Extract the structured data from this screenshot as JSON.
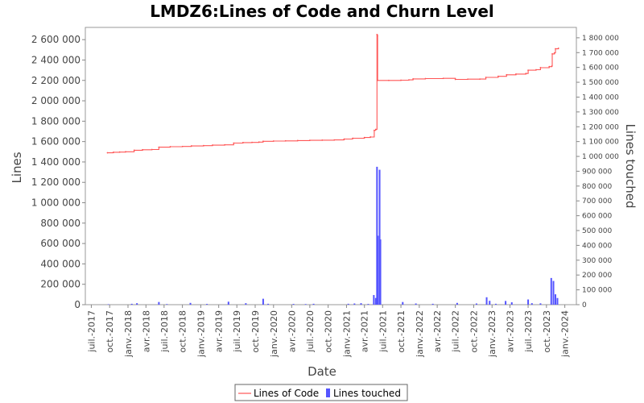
{
  "chart_data": {
    "type": "line",
    "title": "LMDZ6:Lines of Code and Churn Level",
    "xlabel": "Date",
    "ylabel": "Lines",
    "y2label": "Lines touched",
    "x_ticks": [
      "juil.-2017",
      "oct.-2017",
      "janv.-2018",
      "avr.-2018",
      "juil.-2018",
      "oct.-2018",
      "janv.-2019",
      "avr.-2019",
      "juil.-2019",
      "oct.-2019",
      "janv.-2020",
      "avr.-2020",
      "juil.-2020",
      "oct.-2020",
      "janv.-2021",
      "avr.-2021",
      "juil.-2021",
      "oct.-2021",
      "janv.-2022",
      "avr.-2022",
      "juil.-2022",
      "oct.-2022",
      "janv.-2023",
      "avr.-2023",
      "juil.-2023",
      "oct.-2023",
      "janv.-2024"
    ],
    "y_ticks": [
      "0",
      "200 000",
      "400 000",
      "600 000",
      "800 000",
      "1 000 000",
      "1 200 000",
      "1 400 000",
      "1 600 000",
      "1 800 000",
      "2 000 000",
      "2 200 000",
      "2 400 000",
      "2 600 000"
    ],
    "y2_ticks": [
      "0",
      "100 000",
      "200 000",
      "300 000",
      "400 000",
      "500 000",
      "600 000",
      "700 000",
      "800 000",
      "900 000",
      "1 000 000",
      "1 100 000",
      "1 200 000",
      "1 300 000",
      "1 400 000",
      "1 500 000",
      "1 600 000",
      "1 700 000",
      "1 800 000"
    ],
    "ylim": [
      0,
      2720000
    ],
    "y2lim": [
      0,
      1870000
    ],
    "xlim": [
      "2017-06-01",
      "2024-02-28"
    ],
    "grid": false,
    "legend_position": "bottom",
    "colors": {
      "loc": "#ff5555",
      "churn": "#5555ff"
    },
    "series": [
      {
        "name": "Lines of Code",
        "axis": "left",
        "points": [
          [
            "2017-09-20",
            1490000
          ],
          [
            "2017-10-20",
            1495000
          ],
          [
            "2017-11-20",
            1497000
          ],
          [
            "2017-12-20",
            1500000
          ],
          [
            "2018-02-01",
            1515000
          ],
          [
            "2018-03-15",
            1520000
          ],
          [
            "2018-05-01",
            1522000
          ],
          [
            "2018-06-05",
            1545000
          ],
          [
            "2018-08-01",
            1550000
          ],
          [
            "2018-10-01",
            1552000
          ],
          [
            "2018-11-15",
            1557000
          ],
          [
            "2019-01-15",
            1560000
          ],
          [
            "2019-03-01",
            1565000
          ],
          [
            "2019-05-01",
            1568000
          ],
          [
            "2019-06-15",
            1585000
          ],
          [
            "2019-08-01",
            1590000
          ],
          [
            "2019-09-15",
            1592000
          ],
          [
            "2019-10-20",
            1595000
          ],
          [
            "2019-11-10",
            1603000
          ],
          [
            "2020-01-01",
            1605000
          ],
          [
            "2020-03-01",
            1607000
          ],
          [
            "2020-05-01",
            1610000
          ],
          [
            "2020-07-01",
            1612000
          ],
          [
            "2020-09-01",
            1614000
          ],
          [
            "2020-11-01",
            1616000
          ],
          [
            "2020-12-20",
            1625000
          ],
          [
            "2021-02-01",
            1633000
          ],
          [
            "2021-04-01",
            1640000
          ],
          [
            "2021-05-01",
            1645000
          ],
          [
            "2021-05-20",
            1710000
          ],
          [
            "2021-05-28",
            1720000
          ],
          [
            "2021-06-03",
            2650000
          ],
          [
            "2021-06-05",
            2640000
          ],
          [
            "2021-06-06",
            2200000
          ],
          [
            "2021-08-01",
            2200000
          ],
          [
            "2021-10-01",
            2202000
          ],
          [
            "2021-11-10",
            2205000
          ],
          [
            "2021-12-01",
            2215000
          ],
          [
            "2022-02-01",
            2218000
          ],
          [
            "2022-05-01",
            2220000
          ],
          [
            "2022-07-01",
            2210000
          ],
          [
            "2022-09-01",
            2212000
          ],
          [
            "2022-11-01",
            2213000
          ],
          [
            "2022-12-01",
            2230000
          ],
          [
            "2023-02-01",
            2240000
          ],
          [
            "2023-03-15",
            2255000
          ],
          [
            "2023-05-01",
            2262000
          ],
          [
            "2023-06-20",
            2268000
          ],
          [
            "2023-07-01",
            2300000
          ],
          [
            "2023-08-10",
            2305000
          ],
          [
            "2023-09-01",
            2325000
          ],
          [
            "2023-10-15",
            2335000
          ],
          [
            "2023-10-28",
            2340000
          ],
          [
            "2023-10-30",
            2460000
          ],
          [
            "2023-11-10",
            2470000
          ],
          [
            "2023-11-15",
            2510000
          ],
          [
            "2023-11-30",
            2515000
          ]
        ]
      },
      {
        "name": "Lines touched",
        "axis": "right",
        "type": "bar",
        "points": [
          [
            "2017-09-25",
            3000
          ],
          [
            "2018-01-20",
            6000
          ],
          [
            "2018-02-15",
            10000
          ],
          [
            "2018-06-05",
            18000
          ],
          [
            "2018-07-15",
            4000
          ],
          [
            "2018-11-10",
            12000
          ],
          [
            "2019-02-01",
            5000
          ],
          [
            "2019-05-20",
            20000
          ],
          [
            "2019-08-15",
            10000
          ],
          [
            "2019-11-10",
            40000
          ],
          [
            "2019-12-05",
            6000
          ],
          [
            "2020-04-10",
            5000
          ],
          [
            "2020-06-10",
            4000
          ],
          [
            "2020-07-20",
            6000
          ],
          [
            "2021-01-10",
            6000
          ],
          [
            "2021-02-10",
            8000
          ],
          [
            "2021-03-15",
            10000
          ],
          [
            "2021-04-20",
            5000
          ],
          [
            "2021-05-18",
            65000
          ],
          [
            "2021-05-28",
            45000
          ],
          [
            "2021-06-03",
            930000
          ],
          [
            "2021-06-07",
            465000
          ],
          [
            "2021-06-16",
            910000
          ],
          [
            "2021-06-20",
            440000
          ],
          [
            "2021-10-10",
            18000
          ],
          [
            "2021-12-15",
            8000
          ],
          [
            "2022-03-10",
            6000
          ],
          [
            "2022-07-10",
            12000
          ],
          [
            "2022-10-15",
            8000
          ],
          [
            "2022-12-05",
            50000
          ],
          [
            "2022-12-20",
            26000
          ],
          [
            "2023-01-20",
            6000
          ],
          [
            "2023-03-10",
            25000
          ],
          [
            "2023-04-10",
            16000
          ],
          [
            "2023-07-01",
            35000
          ],
          [
            "2023-07-20",
            10000
          ],
          [
            "2023-09-01",
            9000
          ],
          [
            "2023-10-25",
            180000
          ],
          [
            "2023-11-05",
            160000
          ],
          [
            "2023-11-15",
            70000
          ],
          [
            "2023-11-25",
            45000
          ]
        ]
      }
    ]
  },
  "legend": [
    {
      "label": "Lines of Code"
    },
    {
      "label": "Lines touched"
    }
  ]
}
